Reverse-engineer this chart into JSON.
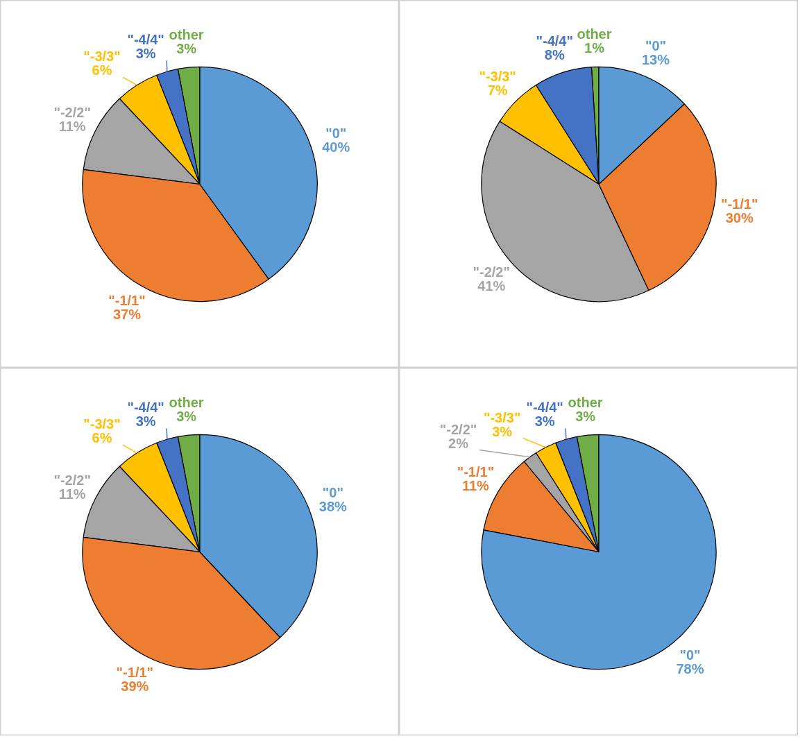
{
  "chart_data": [
    {
      "type": "pie",
      "categories": [
        "\"0\"",
        "\"-1/1\"",
        "\"-2/2\"",
        "\"-3/3\"",
        "\"-4/4\"",
        "other"
      ],
      "values": [
        40,
        37,
        11,
        6,
        3,
        3
      ],
      "value_labels": [
        "40%",
        "37%",
        "11%",
        "6%",
        "3%",
        "3%"
      ],
      "colors": [
        "#5b9bd5",
        "#ed7d31",
        "#a5a5a5",
        "#ffc000",
        "#4472c4",
        "#70ad47"
      ]
    },
    {
      "type": "pie",
      "categories": [
        "\"0\"",
        "\"-1/1\"",
        "\"-2/2\"",
        "\"-3/3\"",
        "\"-4/4\"",
        "other"
      ],
      "values": [
        13,
        30,
        41,
        7,
        8,
        1
      ],
      "value_labels": [
        "13%",
        "30%",
        "41%",
        "7%",
        "8%",
        "1%"
      ],
      "colors": [
        "#5b9bd5",
        "#ed7d31",
        "#a5a5a5",
        "#ffc000",
        "#4472c4",
        "#70ad47"
      ]
    },
    {
      "type": "pie",
      "categories": [
        "\"0\"",
        "\"-1/1\"",
        "\"-2/2\"",
        "\"-3/3\"",
        "\"-4/4\"",
        "other"
      ],
      "values": [
        38,
        39,
        11,
        6,
        3,
        3
      ],
      "value_labels": [
        "38%",
        "39%",
        "11%",
        "6%",
        "3%",
        "3%"
      ],
      "colors": [
        "#5b9bd5",
        "#ed7d31",
        "#a5a5a5",
        "#ffc000",
        "#4472c4",
        "#70ad47"
      ]
    },
    {
      "type": "pie",
      "categories": [
        "\"0\"",
        "\"-1/1\"",
        "\"-2/2\"",
        "\"-3/3\"",
        "\"-4/4\"",
        "other"
      ],
      "values": [
        78,
        11,
        2,
        3,
        3,
        3
      ],
      "value_labels": [
        "78%",
        "11%",
        "2%",
        "3%",
        "3%",
        "3%"
      ],
      "colors": [
        "#5b9bd5",
        "#ed7d31",
        "#a5a5a5",
        "#ffc000",
        "#4472c4",
        "#70ad47"
      ]
    }
  ]
}
